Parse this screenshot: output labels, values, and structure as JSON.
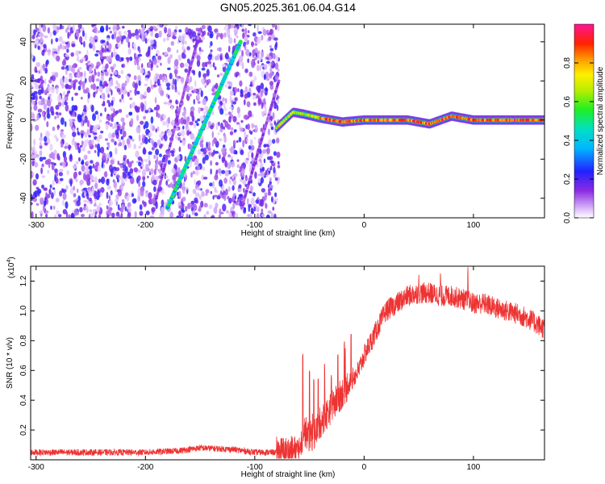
{
  "title": "GN05.2025.361.06.04.G14",
  "chart_data": [
    {
      "type": "heatmap",
      "xlabel": "Height of straight line (km)",
      "ylabel": "Frequency (Hz)",
      "xlim": [
        -305,
        165
      ],
      "ylim": [
        -50,
        49
      ],
      "xticks": [
        -300,
        -200,
        -100,
        0,
        100
      ],
      "yticks": [
        -40,
        -20,
        0,
        20,
        40
      ],
      "colorbar": {
        "label": "Normalized spectral amplitude",
        "range": [
          0.0,
          1.0
        ],
        "ticks": [
          "0.0",
          "0.2",
          "0.4",
          "0.6",
          "0.8"
        ],
        "tick_values": [
          0.0,
          0.2,
          0.4,
          0.6,
          0.8
        ]
      },
      "features": [
        {
          "kind": "noise",
          "x_range": [
            -305,
            -78
          ],
          "amplitude": 0.12
        },
        {
          "kind": "diagonal_line",
          "x": [
            -180,
            -113
          ],
          "y": [
            -45,
            40
          ],
          "amplitude": 0.45
        },
        {
          "kind": "faint_diagonal",
          "x": [
            -190,
            -150
          ],
          "y": [
            -40,
            46
          ],
          "amplitude": 0.12
        },
        {
          "kind": "faint_diagonal",
          "x": [
            -112,
            -78
          ],
          "y": [
            -45,
            20
          ],
          "amplitude": 0.12
        },
        {
          "kind": "tone",
          "x": [
            -80,
            -65,
            -55,
            -40,
            -20,
            0,
            20,
            40,
            60,
            70,
            80,
            100,
            165
          ],
          "y": [
            -4,
            4,
            3,
            1,
            -1,
            0,
            0,
            0,
            -2,
            0,
            2,
            0,
            0
          ],
          "amplitude": 0.95
        }
      ]
    },
    {
      "type": "line",
      "xlabel": "Height of straight line (km)",
      "ylabel": "SNR (10 * v/v)",
      "y_multiplier": "(x10",
      "y_multiplier_exp": "4",
      "y_multiplier_close": ")",
      "xlim": [
        -305,
        165
      ],
      "ylim": [
        0.0,
        1.3
      ],
      "xticks": [
        -300,
        -200,
        -100,
        0,
        100
      ],
      "yticks": [
        "0.2",
        "0.4",
        "0.6",
        "0.8",
        "1.0",
        "1.2"
      ],
      "ytick_values": [
        0.2,
        0.4,
        0.6,
        0.8,
        1.0,
        1.2
      ],
      "series": [
        {
          "color": "#ee3333",
          "x": [
            -305,
            -250,
            -200,
            -170,
            -150,
            -120,
            -100,
            -80,
            -70,
            -60,
            -55,
            -50,
            -45,
            -40,
            -35,
            -30,
            -25,
            -20,
            -15,
            -10,
            -5,
            0,
            10,
            20,
            30,
            40,
            50,
            60,
            70,
            80,
            90,
            100,
            110,
            120,
            130,
            140,
            150,
            165
          ],
          "y": [
            0.05,
            0.05,
            0.05,
            0.06,
            0.08,
            0.07,
            0.05,
            0.05,
            0.05,
            0.06,
            0.2,
            0.15,
            0.18,
            0.25,
            0.3,
            0.35,
            0.4,
            0.45,
            0.5,
            0.55,
            0.6,
            0.7,
            0.85,
            1.0,
            1.05,
            1.1,
            1.12,
            1.12,
            1.1,
            1.1,
            1.08,
            1.05,
            1.05,
            1.02,
            1.0,
            0.98,
            0.95,
            0.88
          ],
          "noise": 0.06,
          "spikes": [
            {
              "x": -56,
              "y": 0.75
            },
            {
              "x": -50,
              "y": 0.6
            },
            {
              "x": -46,
              "y": 0.55
            },
            {
              "x": -42,
              "y": 0.55
            },
            {
              "x": -36,
              "y": 0.65
            },
            {
              "x": -30,
              "y": 0.57
            },
            {
              "x": -24,
              "y": 0.75
            },
            {
              "x": -18,
              "y": 0.8
            },
            {
              "x": -12,
              "y": 0.85
            },
            {
              "x": 50,
              "y": 1.25
            },
            {
              "x": 70,
              "y": 1.27
            },
            {
              "x": 95,
              "y": 1.3
            }
          ]
        }
      ]
    }
  ]
}
